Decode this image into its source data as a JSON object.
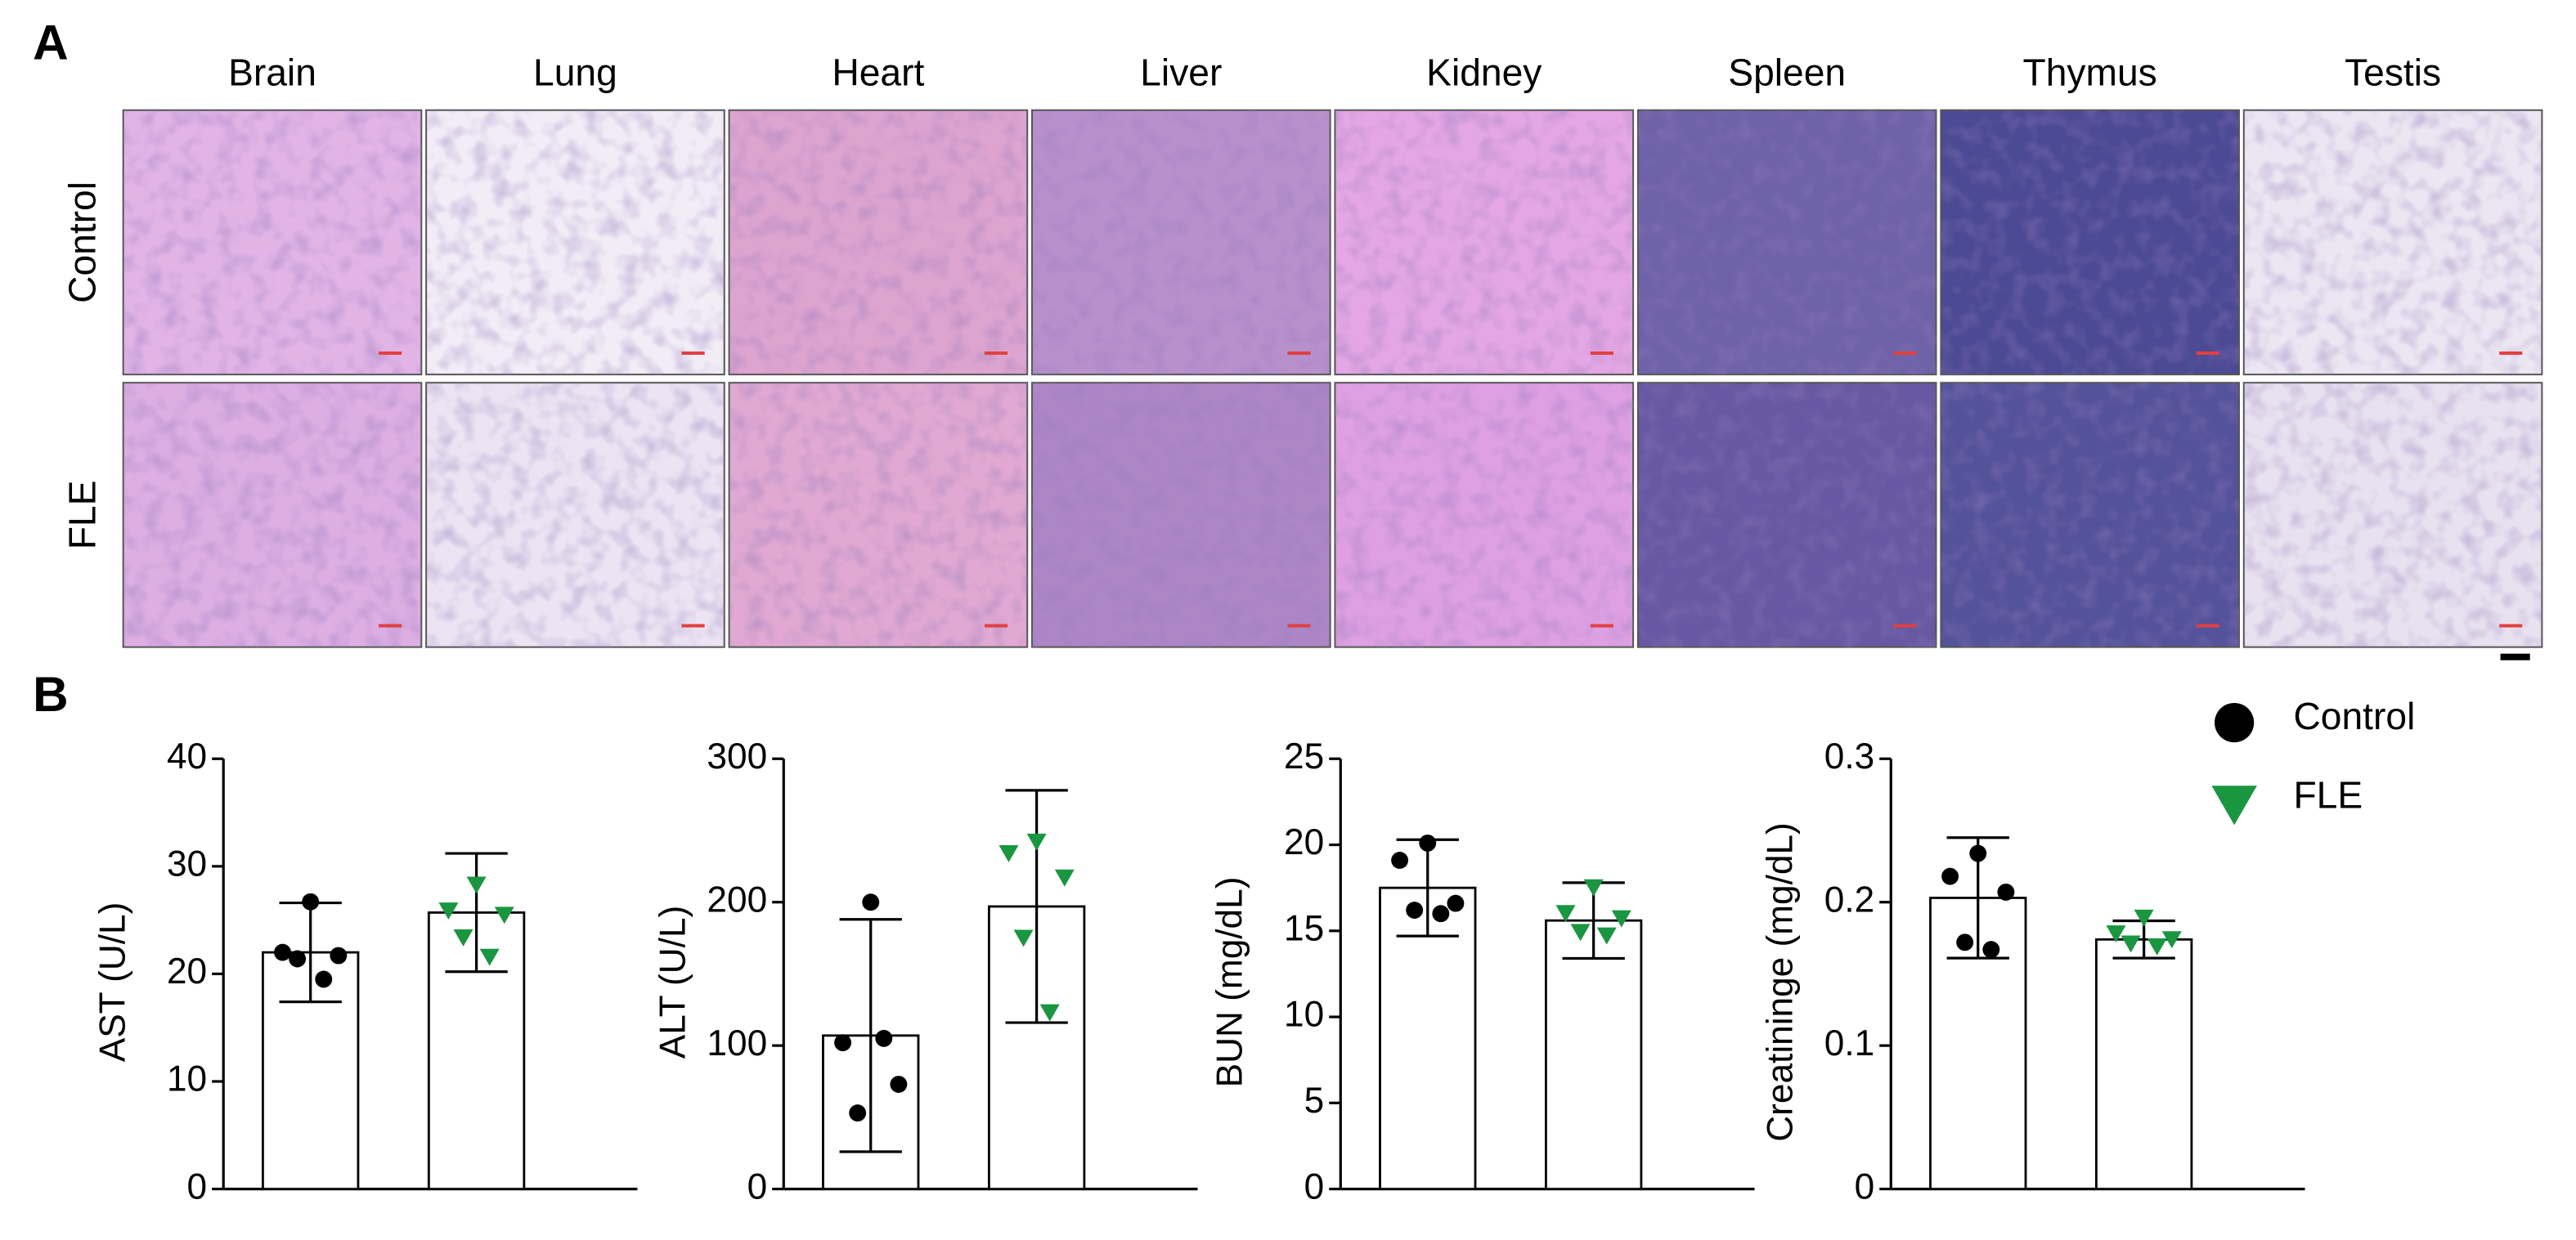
{
  "panel_a": {
    "label": "A",
    "columns": [
      "Brain",
      "Lung",
      "Heart",
      "Liver",
      "Kidney",
      "Spleen",
      "Thymus",
      "Testis"
    ],
    "rows": [
      "Control",
      "FLE"
    ]
  },
  "panel_b_label": "B",
  "groups": [
    {
      "name": "Control",
      "color": "#000000",
      "marker": "circle"
    },
    {
      "name": "FLE",
      "color": "#1a9641",
      "marker": "triangle"
    }
  ],
  "chart_data": [
    {
      "type": "bar",
      "y_label": "AST (U/L)",
      "ylim": [
        0,
        40
      ],
      "yticks": [
        0,
        10,
        20,
        30,
        40
      ],
      "values": [
        22,
        25.7
      ],
      "errors": [
        4.6,
        5.5
      ],
      "points": [
        [
          26.7,
          22.0,
          21.7,
          21.4,
          19.5
        ],
        [
          28.4,
          26.0,
          25.6,
          23.5,
          21.7
        ]
      ]
    },
    {
      "type": "bar",
      "y_label": "ALT (U/L)",
      "ylim": [
        0,
        300
      ],
      "yticks": [
        0,
        100,
        200,
        300
      ],
      "values": [
        107,
        197
      ],
      "errors": [
        81,
        81
      ],
      "points": [
        [
          200,
          102,
          73,
          53,
          105
        ],
        [
          243,
          235,
          218,
          176,
          124
        ]
      ]
    },
    {
      "type": "bar",
      "y_label": "BUN (mg/dL)",
      "ylim": [
        0,
        25
      ],
      "yticks": [
        0,
        5,
        10,
        15,
        20,
        25
      ],
      "values": [
        17.5,
        15.6
      ],
      "errors": [
        2.8,
        2.2
      ],
      "points": [
        [
          20.1,
          19.1,
          16.6,
          16.2,
          16.0
        ],
        [
          17.6,
          16.1,
          15.8,
          15.0,
          14.8
        ]
      ]
    },
    {
      "type": "bar",
      "y_label": "Creatininge (mg/dL)",
      "ylim": [
        0,
        0.3
      ],
      "yticks": [
        0,
        0.1,
        0.2,
        0.3
      ],
      "values": [
        0.203,
        0.174
      ],
      "errors": [
        0.042,
        0.013
      ],
      "points": [
        [
          0.234,
          0.218,
          0.207,
          0.172,
          0.167
        ],
        [
          0.19,
          0.179,
          0.175,
          0.172,
          0.17
        ]
      ]
    }
  ]
}
